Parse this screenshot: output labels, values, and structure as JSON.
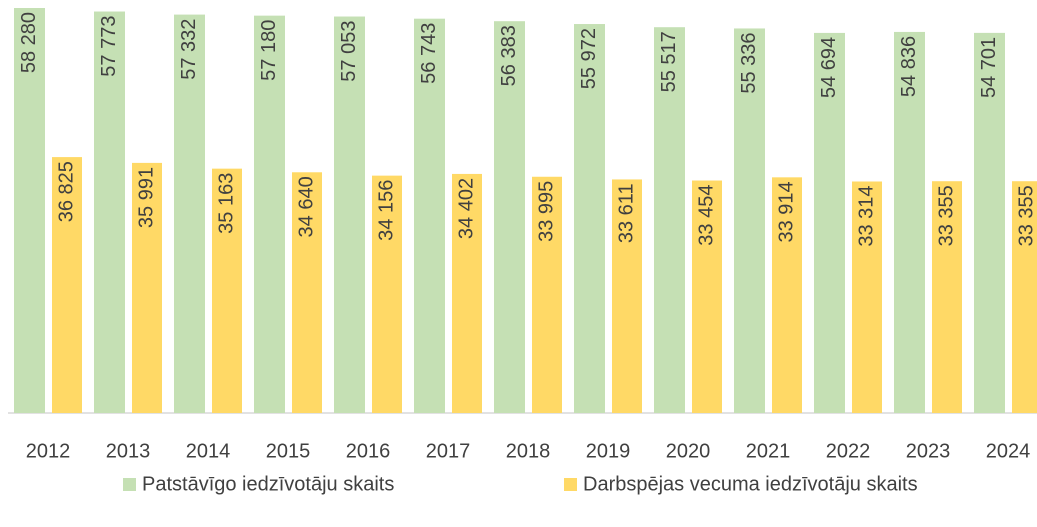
{
  "chart_data": {
    "type": "bar",
    "categories": [
      "2012",
      "2013",
      "2014",
      "2015",
      "2016",
      "2017",
      "2018",
      "2019",
      "2020",
      "2021",
      "2022",
      "2023",
      "2024"
    ],
    "series": [
      {
        "name": "Patstāvīgo iedzīvotāju skaits",
        "color": "#c5e0b4",
        "values": [
          58280,
          57773,
          57332,
          57180,
          57053,
          56743,
          56383,
          55972,
          55517,
          55336,
          54694,
          54836,
          54701
        ],
        "value_labels": [
          "58 280",
          "57 773",
          "57 332",
          "57 180",
          "57 053",
          "56 743",
          "56 383",
          "55 972",
          "55 517",
          "55 336",
          "54 694",
          "54 836",
          "54 701"
        ]
      },
      {
        "name": "Darbspējas vecuma iedzīvotāju skaits",
        "color": "#ffd966",
        "values": [
          36825,
          35991,
          35163,
          34640,
          34156,
          34402,
          33995,
          33611,
          33454,
          33914,
          33314,
          33355,
          33355
        ],
        "value_labels": [
          "36 825",
          "35 991",
          "35 163",
          "34 640",
          "34 156",
          "34 402",
          "33 995",
          "33 611",
          "33 454",
          "33 914",
          "33 314",
          "33 355",
          "33 355"
        ]
      }
    ],
    "legend": "bottom"
  }
}
